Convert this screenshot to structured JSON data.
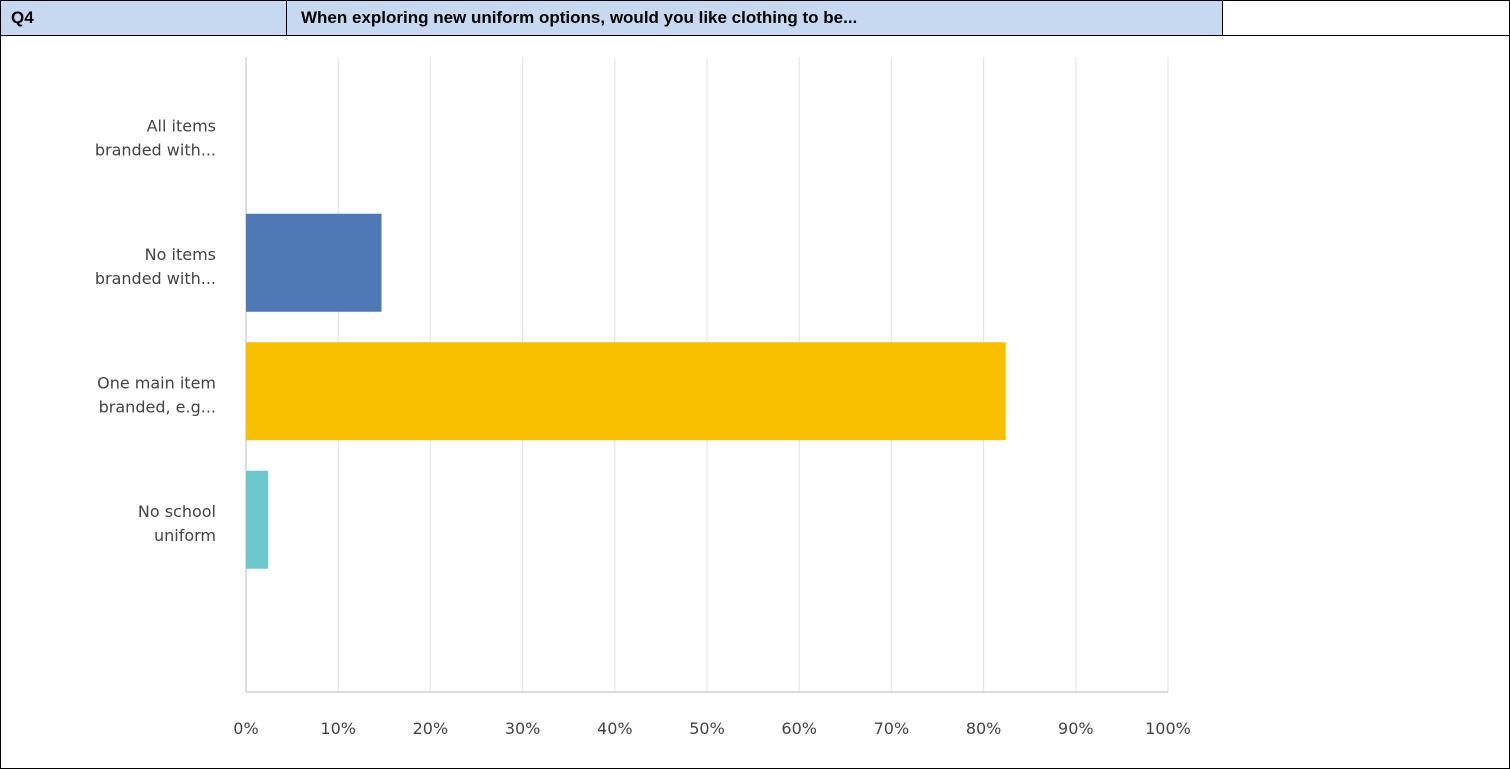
{
  "header": {
    "question_id": "Q4",
    "question_text": "When exploring new uniform options, would you like clothing to be..."
  },
  "chart_data": {
    "type": "bar",
    "orientation": "horizontal",
    "categories": [
      [
        "All items",
        "branded with..."
      ],
      [
        "No items",
        "branded with..."
      ],
      [
        "One main item",
        "branded, e.g..."
      ],
      [
        "No school",
        "uniform"
      ]
    ],
    "values": [
      0,
      14.7,
      82.4,
      2.4
    ],
    "colors": [
      "#4e79b5",
      "#4e79b5",
      "#f8be00",
      "#6cc8cc"
    ],
    "xlim": [
      0,
      100
    ],
    "xticks": [
      "0%",
      "10%",
      "20%",
      "30%",
      "40%",
      "50%",
      "60%",
      "70%",
      "80%",
      "90%",
      "100%"
    ],
    "grid": true,
    "title": "",
    "xlabel": "",
    "ylabel": ""
  }
}
